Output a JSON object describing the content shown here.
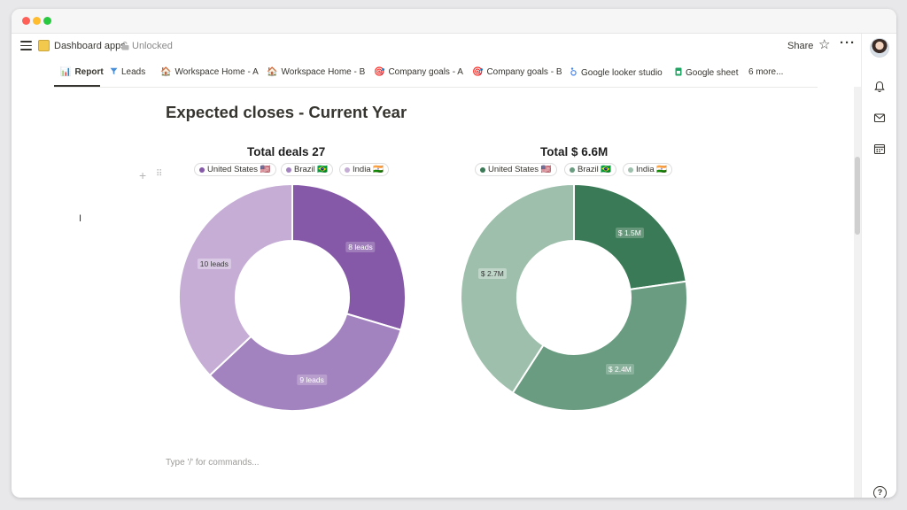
{
  "topbar": {
    "page_title": "Dashboard apps",
    "lock_status": "Unlocked",
    "share_label": "Share"
  },
  "tabs": [
    {
      "label": "Report",
      "icon": "📊",
      "active": true
    },
    {
      "label": "Leads",
      "icon": "funnel-icon"
    },
    {
      "label": "Workspace Home - A",
      "icon": "🏠"
    },
    {
      "label": "Workspace Home - B",
      "icon": "🏠"
    },
    {
      "label": "Company goals - A",
      "icon": "🎯"
    },
    {
      "label": "Company goals - B",
      "icon": "🎯"
    },
    {
      "label": "Google looker studio",
      "icon": "looker-icon"
    },
    {
      "label": "Google sheet",
      "icon": "sheet-icon"
    },
    {
      "label": "6 more..."
    }
  ],
  "heading": "Expected closes - Current Year",
  "chart_data": [
    {
      "type": "pie",
      "title": "Total deals 27",
      "categories": [
        "United States 🇺🇸",
        "Brazil 🇧🇷",
        "India 🇮🇳"
      ],
      "values": [
        8,
        9,
        10
      ],
      "labels": [
        "8 leads",
        "9 leads",
        "10 leads"
      ],
      "colors": [
        "#8559a8",
        "#a383bf",
        "#c5add6"
      ],
      "legend": "top"
    },
    {
      "type": "pie",
      "title": "Total $ 6.6M",
      "categories": [
        "United States 🇺🇸",
        "Brazil 🇧🇷",
        "India 🇮🇳"
      ],
      "values": [
        1.5,
        2.4,
        2.7
      ],
      "labels": [
        "$ 1.5M",
        "$ 2.4M",
        "$ 2.7M"
      ],
      "colors": [
        "#3b7a57",
        "#6a9c81",
        "#9dbfab"
      ],
      "legend": "top"
    }
  ],
  "command_input": {
    "placeholder": "Type '/' for commands..."
  }
}
